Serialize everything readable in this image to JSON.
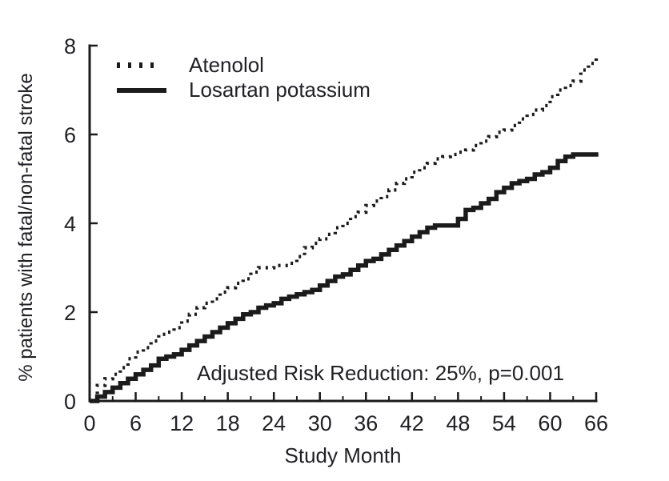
{
  "figure": {
    "background": "#ffffff",
    "ink_color": "#1b1b1b",
    "text_color": "#212126"
  },
  "chart_data": {
    "type": "line",
    "step": true,
    "title": "",
    "xlabel": "Study Month",
    "ylabel": "% patients with fatal/non-fatal stroke",
    "annotation": "Adjusted Risk Reduction: 25%, p=0.001",
    "xlim": [
      0,
      66
    ],
    "ylim": [
      0,
      8
    ],
    "xticks_major": [
      0,
      6,
      12,
      18,
      24,
      30,
      36,
      42,
      48,
      54,
      60,
      66
    ],
    "xticks_minor": [
      3,
      9,
      15,
      21,
      27,
      33,
      39,
      45,
      51,
      57,
      63
    ],
    "yticks": [
      0,
      2,
      4,
      6,
      8
    ],
    "grid": false,
    "legend_position": "top-left-inside",
    "x": [
      0,
      1,
      2,
      3,
      4,
      5,
      6,
      7,
      8,
      9,
      10,
      11,
      12,
      13,
      14,
      15,
      16,
      17,
      18,
      19,
      20,
      21,
      22,
      23,
      24,
      25,
      26,
      27,
      28,
      29,
      30,
      31,
      32,
      33,
      34,
      35,
      36,
      37,
      38,
      39,
      40,
      41,
      42,
      43,
      44,
      45,
      46,
      47,
      48,
      49,
      50,
      51,
      52,
      53,
      54,
      55,
      56,
      57,
      58,
      59,
      60,
      61,
      62,
      63,
      64,
      65,
      66
    ],
    "series": [
      {
        "name": "Atenolol",
        "line_style": "dotted",
        "color": "#1b1b1b",
        "values": [
          0,
          0.35,
          0.5,
          0.6,
          0.75,
          0.95,
          1.1,
          1.2,
          1.35,
          1.5,
          1.55,
          1.65,
          1.8,
          1.95,
          2.1,
          2.2,
          2.3,
          2.45,
          2.55,
          2.65,
          2.75,
          2.9,
          3.0,
          3.0,
          3.05,
          3.05,
          3.1,
          3.25,
          3.45,
          3.55,
          3.65,
          3.75,
          3.9,
          4.0,
          4.15,
          4.25,
          4.4,
          4.5,
          4.6,
          4.75,
          4.9,
          5.0,
          5.15,
          5.25,
          5.35,
          5.45,
          5.5,
          5.55,
          5.6,
          5.65,
          5.75,
          5.85,
          5.95,
          6.05,
          6.1,
          6.2,
          6.35,
          6.45,
          6.55,
          6.65,
          6.85,
          7.0,
          7.1,
          7.2,
          7.45,
          7.6,
          7.75
        ]
      },
      {
        "name": "Losartan potassium",
        "line_style": "solid",
        "color": "#1b1b1b",
        "values": [
          0,
          0.1,
          0.2,
          0.3,
          0.4,
          0.5,
          0.6,
          0.7,
          0.8,
          0.95,
          1.0,
          1.05,
          1.15,
          1.25,
          1.35,
          1.45,
          1.55,
          1.65,
          1.75,
          1.85,
          1.95,
          2.0,
          2.1,
          2.15,
          2.2,
          2.3,
          2.35,
          2.4,
          2.45,
          2.5,
          2.6,
          2.7,
          2.8,
          2.85,
          2.95,
          3.05,
          3.15,
          3.2,
          3.3,
          3.4,
          3.5,
          3.6,
          3.7,
          3.8,
          3.9,
          3.95,
          3.95,
          3.95,
          4.1,
          4.3,
          4.35,
          4.45,
          4.55,
          4.7,
          4.8,
          4.9,
          4.95,
          5.0,
          5.1,
          5.15,
          5.25,
          5.4,
          5.5,
          5.55,
          5.55,
          5.55,
          5.6
        ]
      }
    ]
  }
}
